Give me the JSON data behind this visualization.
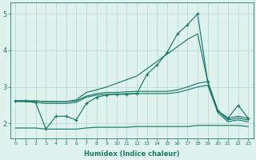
{
  "xlabel": "Humidex (Indice chaleur)",
  "bg_color": "#dff2ee",
  "grid_color": "#b8ddd6",
  "line_color": "#1a7a6a",
  "x": [
    0,
    1,
    2,
    3,
    4,
    5,
    6,
    7,
    8,
    9,
    10,
    11,
    12,
    13,
    14,
    15,
    16,
    17,
    18,
    19,
    20,
    21,
    22,
    23
  ],
  "series_marker": [
    2.62,
    2.62,
    2.57,
    1.85,
    2.2,
    2.2,
    2.1,
    2.55,
    2.72,
    2.78,
    2.8,
    2.8,
    2.82,
    3.35,
    3.6,
    3.95,
    4.45,
    4.7,
    5.0,
    3.15,
    2.35,
    2.15,
    2.5,
    2.15
  ],
  "series_upper": [
    2.62,
    2.62,
    2.62,
    2.6,
    2.6,
    2.6,
    2.65,
    2.85,
    2.92,
    3.0,
    3.1,
    3.2,
    3.3,
    3.5,
    3.7,
    3.9,
    4.1,
    4.3,
    4.45,
    3.15,
    2.35,
    2.15,
    2.2,
    2.15
  ],
  "series_mid_upper": [
    2.62,
    2.62,
    2.62,
    2.6,
    2.6,
    2.6,
    2.62,
    2.75,
    2.82,
    2.85,
    2.85,
    2.87,
    2.88,
    2.88,
    2.88,
    2.88,
    2.92,
    3.0,
    3.1,
    3.15,
    2.35,
    2.1,
    2.15,
    2.1
  ],
  "series_mid_lower": [
    2.6,
    2.6,
    2.58,
    2.55,
    2.55,
    2.55,
    2.58,
    2.72,
    2.78,
    2.8,
    2.8,
    2.82,
    2.82,
    2.82,
    2.82,
    2.82,
    2.85,
    2.92,
    3.0,
    3.05,
    2.3,
    2.05,
    2.1,
    2.05
  ],
  "series_lower": [
    1.88,
    1.88,
    1.88,
    1.85,
    1.85,
    1.85,
    1.85,
    1.88,
    1.9,
    1.9,
    1.9,
    1.9,
    1.92,
    1.92,
    1.92,
    1.92,
    1.92,
    1.92,
    1.95,
    1.95,
    1.95,
    1.95,
    1.95,
    1.92
  ],
  "ylim": [
    1.6,
    5.3
  ],
  "xlim": [
    -0.5,
    23.5
  ],
  "yticks": [
    2,
    3,
    4,
    5
  ],
  "xticks": [
    0,
    1,
    2,
    3,
    4,
    5,
    6,
    7,
    8,
    9,
    10,
    11,
    12,
    13,
    14,
    15,
    16,
    17,
    18,
    19,
    20,
    21,
    22,
    23
  ]
}
